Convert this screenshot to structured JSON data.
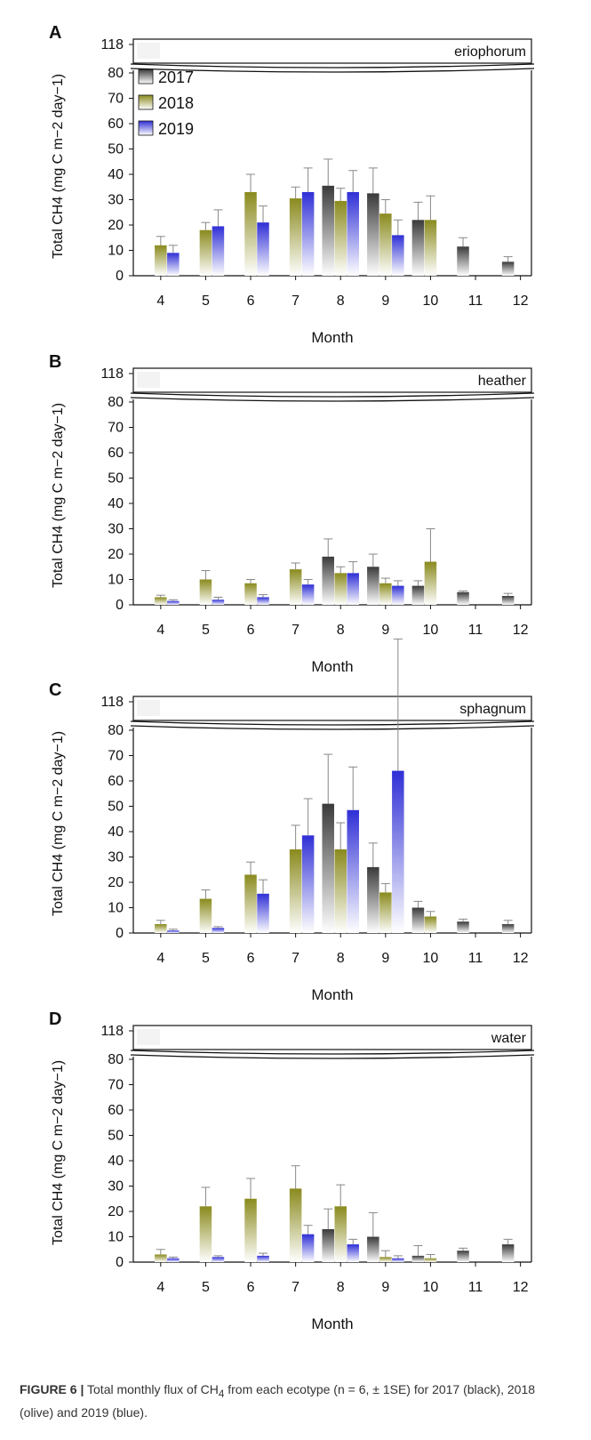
{
  "legend": [
    {
      "label": "2017",
      "color": "#3a3a3a"
    },
    {
      "label": "2018",
      "color": "#8a8a1e"
    },
    {
      "label": "2019",
      "color": "#2f2fd6"
    }
  ],
  "caption": {
    "figure_label": "FIGURE 6 |",
    "text_before_sub": " Total monthly flux of CH",
    "sub": "4",
    "text_after_sub": " from each ecotype (n = 6, ± 1SE) for 2017 (black), 2018 (olive) and 2019 (blue)."
  },
  "chart_data": [
    {
      "type": "bar",
      "panel_letter": "A",
      "title": "eriophorum",
      "xlabel": "Month",
      "ylabel": "Total CH4 (mg C m−2 day−1)",
      "ylim": [
        0,
        80
      ],
      "yticks": [
        0,
        10,
        20,
        30,
        40,
        50,
        60,
        70,
        80
      ],
      "ybreak_top_tick": 118,
      "categories": [
        "4",
        "5",
        "6",
        "7",
        "8",
        "9",
        "10",
        "11",
        "12"
      ],
      "series": [
        {
          "name": "2017",
          "values": [
            null,
            null,
            null,
            null,
            35.5,
            32.5,
            22,
            11.5,
            5.5
          ],
          "errors": [
            null,
            null,
            null,
            null,
            10.5,
            10,
            7,
            3.5,
            2
          ]
        },
        {
          "name": "2018",
          "values": [
            12,
            18,
            33,
            30.5,
            29.5,
            24.5,
            22,
            null,
            null
          ],
          "errors": [
            3.5,
            3,
            7,
            4.5,
            5,
            5.5,
            9.5,
            null,
            null
          ]
        },
        {
          "name": "2019",
          "values": [
            9,
            19.5,
            21,
            33,
            33,
            16,
            null,
            null,
            null
          ],
          "errors": [
            3,
            6.5,
            6.5,
            9.5,
            8.5,
            6,
            null,
            null,
            null
          ]
        }
      ]
    },
    {
      "type": "bar",
      "panel_letter": "B",
      "title": "heather",
      "xlabel": "Month",
      "ylabel": "Total CH4 (mg C m−2 day−1)",
      "ylim": [
        0,
        80
      ],
      "yticks": [
        0,
        10,
        20,
        30,
        40,
        50,
        60,
        70,
        80
      ],
      "ybreak_top_tick": 118,
      "categories": [
        "4",
        "5",
        "6",
        "7",
        "8",
        "9",
        "10",
        "11",
        "12"
      ],
      "series": [
        {
          "name": "2017",
          "values": [
            null,
            null,
            null,
            null,
            19,
            15,
            7.5,
            5,
            3.5
          ],
          "errors": [
            null,
            null,
            null,
            null,
            7,
            5,
            2,
            0.5,
            1
          ]
        },
        {
          "name": "2018",
          "values": [
            3,
            10,
            8.5,
            14,
            12.5,
            8.5,
            17,
            null,
            null
          ],
          "errors": [
            0.8,
            3.5,
            1.5,
            2.5,
            2.5,
            2,
            13,
            null,
            null
          ]
        },
        {
          "name": "2019",
          "values": [
            1.5,
            2,
            3,
            8,
            12.5,
            7.5,
            null,
            null,
            null
          ],
          "errors": [
            0.5,
            1,
            1,
            2,
            4.5,
            2,
            null,
            null,
            null
          ]
        }
      ]
    },
    {
      "type": "bar",
      "panel_letter": "C",
      "title": "sphagnum",
      "xlabel": "Month",
      "ylabel": "Total CH4 (mg C m−2 day−1)",
      "ylim": [
        0,
        80
      ],
      "yticks": [
        0,
        10,
        20,
        30,
        40,
        50,
        60,
        70,
        80
      ],
      "ybreak_top_tick": 118,
      "categories": [
        "4",
        "5",
        "6",
        "7",
        "8",
        "9",
        "10",
        "11",
        "12"
      ],
      "series": [
        {
          "name": "2017",
          "values": [
            null,
            null,
            null,
            null,
            51,
            26,
            10,
            4.5,
            3.5
          ],
          "errors": [
            null,
            null,
            null,
            null,
            19.5,
            9.5,
            2.5,
            1,
            1.5
          ]
        },
        {
          "name": "2018",
          "values": [
            3.5,
            13.5,
            23,
            33,
            33,
            16,
            6.5,
            null,
            null
          ],
          "errors": [
            1.5,
            3.5,
            5,
            9.5,
            10.5,
            3.5,
            2,
            null,
            null
          ]
        },
        {
          "name": "2019",
          "values": [
            1,
            2,
            15.5,
            38.5,
            48.5,
            64,
            null,
            null,
            null
          ],
          "errors": [
            0.5,
            0.5,
            5.5,
            14.5,
            17,
            52,
            null,
            null,
            null
          ]
        }
      ]
    },
    {
      "type": "bar",
      "panel_letter": "D",
      "title": "water",
      "xlabel": "Month",
      "ylabel": "Total CH4 (mg C m−2 day−1)",
      "ylim": [
        0,
        80
      ],
      "yticks": [
        0,
        10,
        20,
        30,
        40,
        50,
        60,
        70,
        80
      ],
      "ybreak_top_tick": 118,
      "categories": [
        "4",
        "5",
        "6",
        "7",
        "8",
        "9",
        "10",
        "11",
        "12"
      ],
      "series": [
        {
          "name": "2017",
          "values": [
            null,
            null,
            null,
            null,
            13,
            10,
            2.5,
            4.5,
            7
          ],
          "errors": [
            null,
            null,
            null,
            null,
            8,
            9.5,
            4,
            1,
            2
          ]
        },
        {
          "name": "2018",
          "values": [
            3,
            22,
            25,
            29,
            22,
            2,
            1.5,
            null,
            null
          ],
          "errors": [
            2,
            7.5,
            8,
            9,
            8.5,
            2.5,
            1.5,
            null,
            null
          ]
        },
        {
          "name": "2019",
          "values": [
            1.5,
            2,
            2.5,
            11,
            7,
            1.5,
            null,
            null,
            null
          ],
          "errors": [
            0.5,
            0.5,
            1,
            3.5,
            2,
            1,
            null,
            null,
            null
          ]
        }
      ]
    }
  ]
}
